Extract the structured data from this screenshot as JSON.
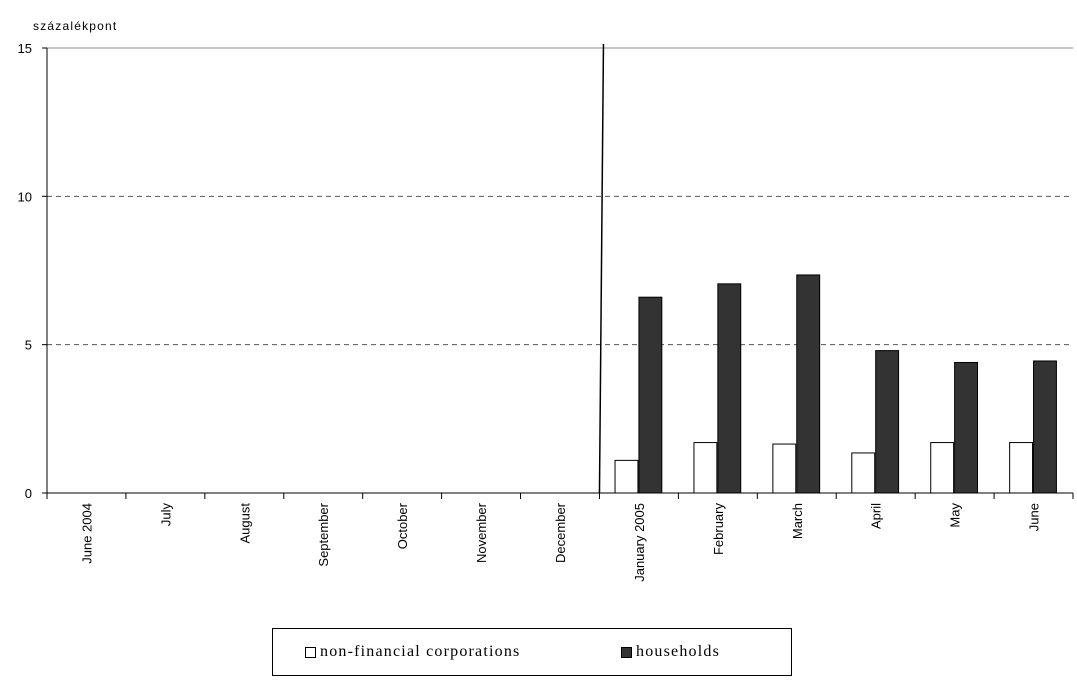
{
  "chart_data": {
    "type": "bar",
    "ylabel": "százalékpont",
    "ylim": [
      0,
      15
    ],
    "yticks": [
      "0",
      "5",
      "10",
      "15"
    ],
    "grid": true,
    "legend_position": "bottom",
    "categories": [
      "June 2004",
      "July",
      "August",
      "September",
      "October",
      "November",
      "December",
      "January 2005",
      "February",
      "March",
      "April",
      "May",
      "June"
    ],
    "series": [
      {
        "name": "non-financial corporations",
        "color": "#ffffff",
        "values": [
          null,
          null,
          null,
          null,
          null,
          null,
          null,
          1.1,
          1.7,
          1.65,
          1.35,
          1.7,
          1.7
        ]
      },
      {
        "name": "households",
        "color": "#333333",
        "values": [
          null,
          null,
          null,
          null,
          null,
          null,
          null,
          6.6,
          7.05,
          7.35,
          4.8,
          4.4,
          4.45
        ]
      }
    ]
  }
}
